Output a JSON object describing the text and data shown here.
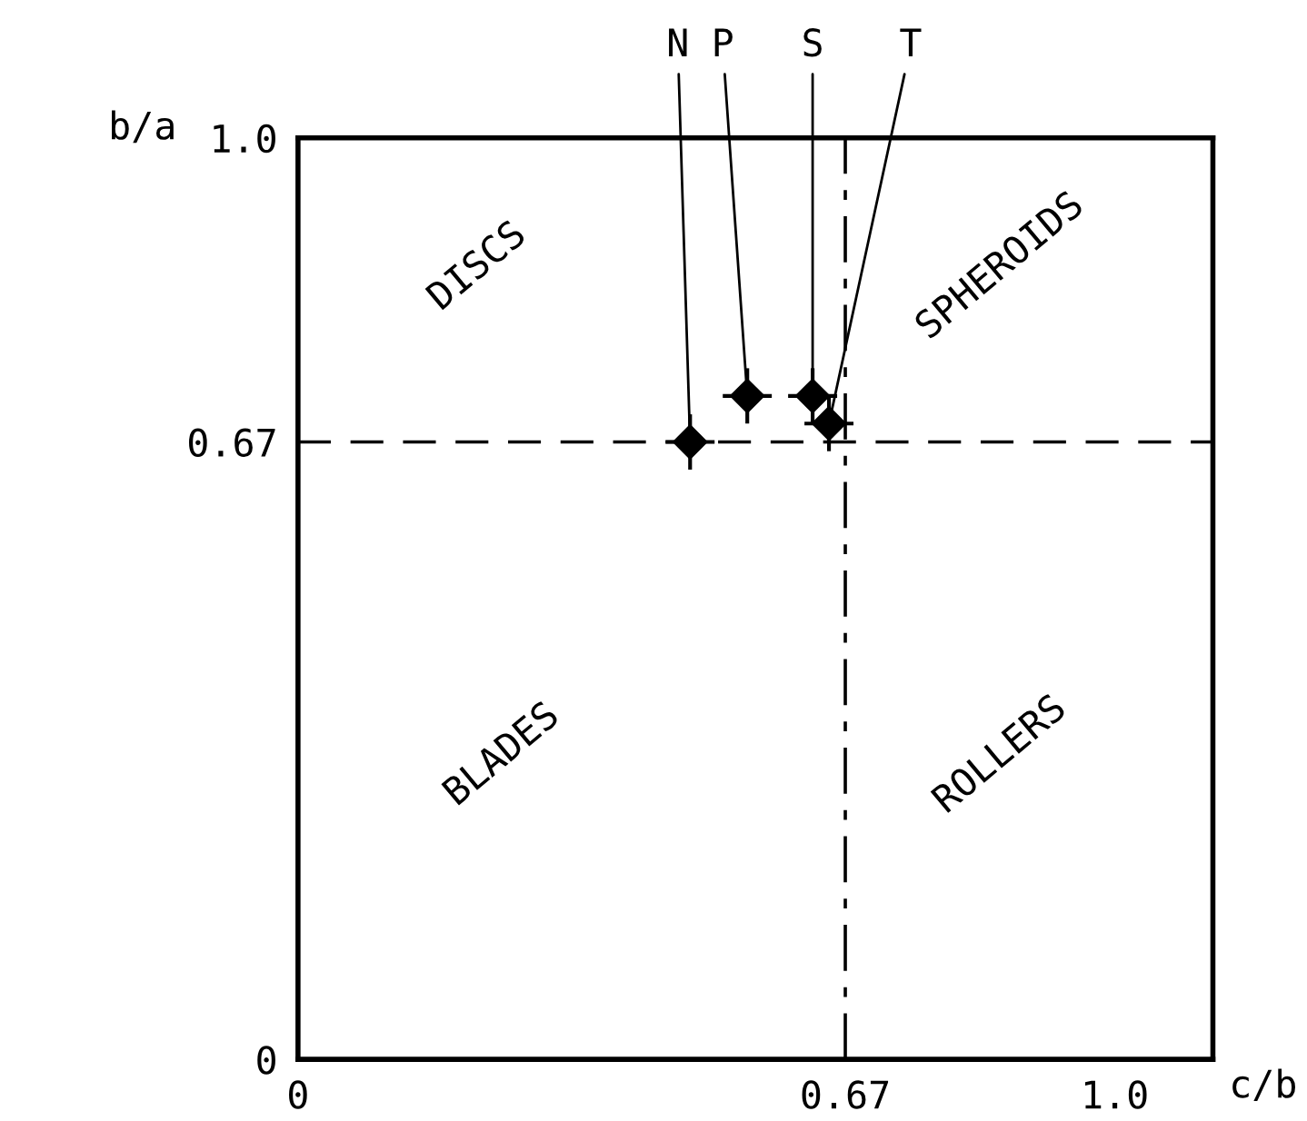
{
  "chart_data": {
    "type": "scatter",
    "xlabel": "c/b",
    "ylabel": "b/a",
    "x": [
      0.48,
      0.55,
      0.63,
      0.65
    ],
    "values": [
      0.67,
      0.72,
      0.72,
      0.69
    ],
    "errors": [
      0.03,
      0.03,
      0.03,
      0.03
    ],
    "xerrors": [
      0.03,
      0.03,
      0.03,
      0.03
    ],
    "color": "#000000",
    "marker": "diamond",
    "grid": false,
    "xlim": [
      0,
      1.12
    ],
    "ylim": [
      0,
      1.0
    ],
    "xticks": [
      0,
      {
        "value": 0.67,
        "label": "0.67"
      },
      {
        "value": 1.0,
        "label": "1.0"
      }
    ],
    "yticks": [
      0,
      {
        "value": 0.67,
        "label": "0.67"
      },
      {
        "value": 1.0,
        "label": "1.0"
      }
    ],
    "ref_lines": [
      {
        "axis": "x",
        "value": 0.67,
        "line_style": "dashdot"
      },
      {
        "axis": "y",
        "value": 0.67,
        "line_style": "dashed"
      }
    ],
    "annotations": [
      {
        "text": "N",
        "x": 0.48,
        "y": 0.67
      },
      {
        "text": "P",
        "x": 0.55,
        "y": 0.72
      },
      {
        "text": "S",
        "x": 0.63,
        "y": 0.72
      },
      {
        "text": "T",
        "x": 0.65,
        "y": 0.69
      },
      "DISCS",
      "SPHEROIDS",
      "BLADES",
      "ROLLERS"
    ]
  }
}
